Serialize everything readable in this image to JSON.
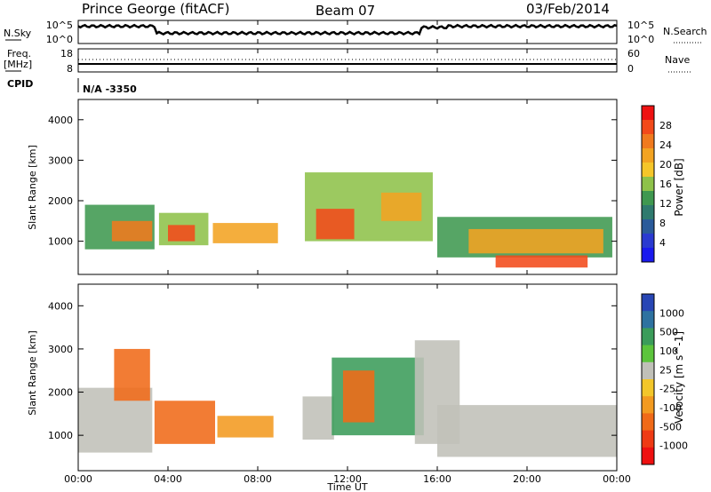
{
  "header": {
    "station": "Prince George (fitACF)",
    "beam": "Beam 07",
    "date": "03/Feb/2014"
  },
  "noise_panel": {
    "left_label": "N.Sky",
    "right_label": "N.Search",
    "left_ticks": [
      "10^5",
      "10^0"
    ],
    "right_ticks": [
      "10^5",
      "10^0"
    ]
  },
  "freq_panel": {
    "left_label_1": "Freq.",
    "left_label_2": "[MHz]",
    "right_label": "Nave",
    "left_ticks": [
      "18",
      "8"
    ],
    "right_ticks": [
      "60",
      "0"
    ]
  },
  "cpid": {
    "label": "CPID",
    "value": "N/A -3350"
  },
  "y_axis": {
    "label": "Slant Range [km]",
    "ticks": [
      "4000",
      "3000",
      "2000",
      "1000"
    ]
  },
  "x_axis": {
    "label": "Time UT",
    "ticks": [
      "00:00",
      "04:00",
      "08:00",
      "12:00",
      "16:00",
      "20:00",
      "00:00"
    ]
  },
  "power_colorbar": {
    "label": "Power [dB]",
    "ticks": [
      "28",
      "24",
      "20",
      "16",
      "12",
      "8",
      "4"
    ],
    "colors": [
      "#ee1111",
      "#f24a1a",
      "#f07a1e",
      "#f2a322",
      "#f5c62a",
      "#8ec24a",
      "#3f9850",
      "#2f7a6e",
      "#2a5a9a",
      "#2a3ad0",
      "#1a1aee"
    ]
  },
  "velocity_colorbar": {
    "label": "Velocity [m s^-1]",
    "ticks": [
      "1000",
      "500",
      "100",
      "25",
      "-25",
      "-100",
      "-500",
      "-1000"
    ],
    "colors": [
      "#2846b4",
      "#2e72a0",
      "#3b9c5a",
      "#5cc43c",
      "#c0c0b8",
      "#f2c62a",
      "#f29a20",
      "#f06a18",
      "#ee3a14",
      "#ee1010"
    ]
  },
  "chart_data": {
    "type": "heatmap",
    "x_range_hours": [
      0,
      24
    ],
    "y_range_km": [
      180,
      4500
    ],
    "panels": [
      {
        "name": "Power",
        "units": "dB",
        "regions": [
          {
            "t0": 0.3,
            "t1": 3.4,
            "r0": 800,
            "r1": 1900,
            "value": 12
          },
          {
            "t0": 1.5,
            "t1": 3.3,
            "r0": 1000,
            "r1": 1500,
            "value": 24
          },
          {
            "t0": 3.6,
            "t1": 5.8,
            "r0": 900,
            "r1": 1700,
            "value": 16
          },
          {
            "t0": 4.0,
            "t1": 5.2,
            "r0": 1000,
            "r1": 1400,
            "value": 28
          },
          {
            "t0": 6.0,
            "t1": 8.9,
            "r0": 950,
            "r1": 1450,
            "value": 20
          },
          {
            "t0": 10.1,
            "t1": 15.8,
            "r0": 1000,
            "r1": 2700,
            "value": 16
          },
          {
            "t0": 10.6,
            "t1": 12.3,
            "r0": 1050,
            "r1": 1800,
            "value": 26
          },
          {
            "t0": 13.5,
            "t1": 15.3,
            "r0": 1500,
            "r1": 2200,
            "value": 22
          },
          {
            "t0": 16.0,
            "t1": 23.8,
            "r0": 600,
            "r1": 1600,
            "value": 12
          },
          {
            "t0": 17.4,
            "t1": 23.4,
            "r0": 700,
            "r1": 1300,
            "value": 20
          },
          {
            "t0": 18.6,
            "t1": 22.7,
            "r0": 350,
            "r1": 650,
            "value": 28
          }
        ]
      },
      {
        "name": "Velocity",
        "units": "m s^-1",
        "regions": [
          {
            "t0": 0.0,
            "t1": 3.3,
            "r0": 600,
            "r1": 2100,
            "value": 0
          },
          {
            "t0": 1.6,
            "t1": 3.2,
            "r0": 1800,
            "r1": 3000,
            "value": -300
          },
          {
            "t0": 3.4,
            "t1": 6.1,
            "r0": 800,
            "r1": 1800,
            "value": -400
          },
          {
            "t0": 6.2,
            "t1": 8.7,
            "r0": 950,
            "r1": 1450,
            "value": -200
          },
          {
            "t0": 10.0,
            "t1": 11.4,
            "r0": 900,
            "r1": 1900,
            "value": 0
          },
          {
            "t0": 11.3,
            "t1": 15.4,
            "r0": 1000,
            "r1": 2800,
            "value": 200
          },
          {
            "t0": 11.8,
            "t1": 13.2,
            "r0": 1300,
            "r1": 2500,
            "value": -300
          },
          {
            "t0": 15.0,
            "t1": 17.0,
            "r0": 800,
            "r1": 3200,
            "value": 0
          },
          {
            "t0": 16.0,
            "t1": 24.0,
            "r0": 500,
            "r1": 1700,
            "value": 0
          }
        ]
      }
    ]
  }
}
